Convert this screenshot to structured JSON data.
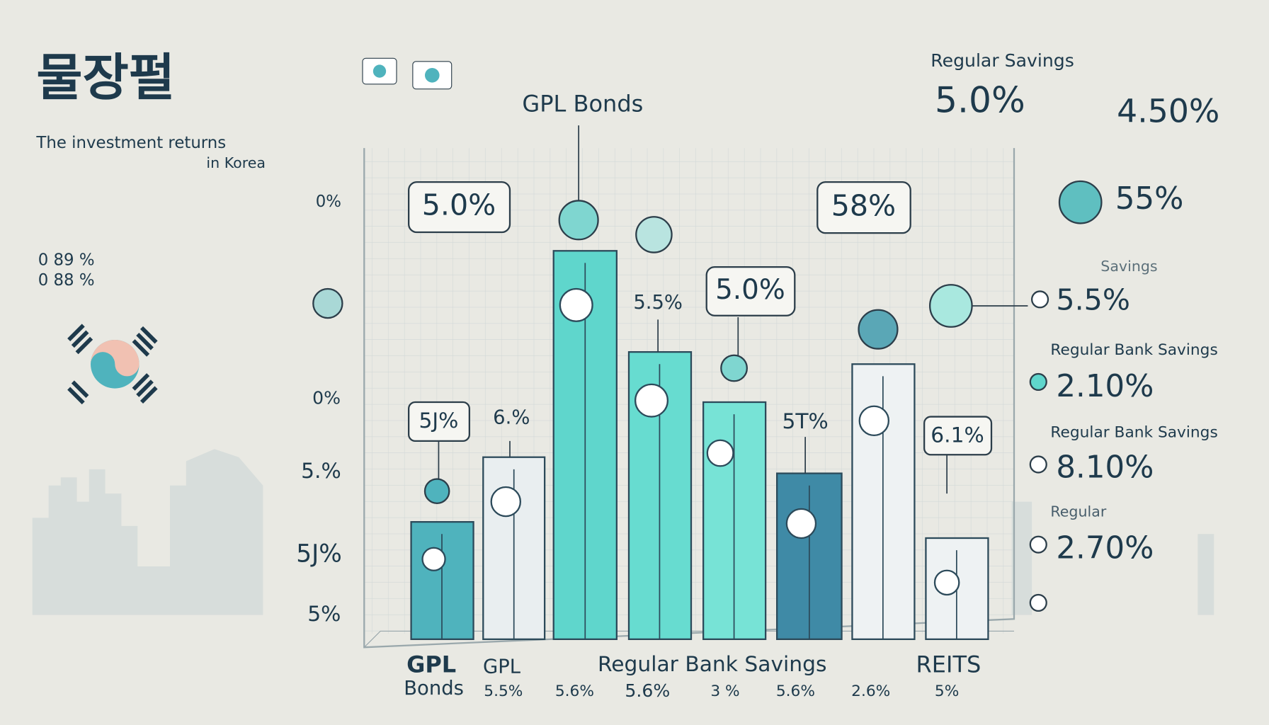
{
  "header": {
    "title": "물장펄",
    "subtitle": [
      "The investment returns",
      "in Korea"
    ]
  },
  "top_right": {
    "label": "Regular Savings",
    "value": "5.0%",
    "side_value": "4.50%"
  },
  "chart": {
    "heading": "GPL Bonds",
    "callouts": [
      "5.0%",
      "58%",
      "5.5%",
      "5.0%",
      "5J%",
      "6.%",
      "5T%",
      "6.1%"
    ],
    "left_labels": [
      "0%",
      "0 89 %",
      "0 88 %",
      "0%",
      "5.%",
      "5J%",
      "5%"
    ],
    "bottom_labels": [
      "GPL",
      "Bonds",
      "GPL",
      "Regular Bank Savings",
      "REITS"
    ],
    "bottom_values": [
      "5.5%",
      "5.6%",
      "5.6%",
      "3 %",
      "5.6%",
      "2.6%",
      "5%"
    ]
  },
  "right_panel": [
    "55%",
    "Savings",
    "5.5%",
    "Regular Bank Savings",
    "2.10%",
    "Regular Bank Savings",
    "8.10%",
    "Regular",
    "2.70%"
  ]
}
